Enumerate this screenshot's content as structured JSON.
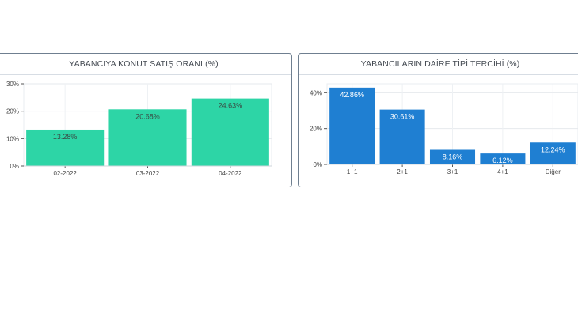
{
  "chart_data": [
    {
      "type": "bar",
      "title": "YABANCIYA KONUT SATIŞ ORANI (%)",
      "categories": [
        "02-2022",
        "03-2022",
        "04-2022"
      ],
      "values": [
        13.28,
        20.68,
        24.63
      ],
      "value_labels": [
        "13.28%",
        "20.68%",
        "24.63%"
      ],
      "ylim": [
        0,
        30
      ],
      "yticks": [
        0,
        10,
        20,
        30
      ],
      "ytick_labels": [
        "0%",
        "10%",
        "20%",
        "30%"
      ],
      "xlabel": "",
      "ylabel": "",
      "grid": true,
      "color": "#2dd5a6",
      "label_color": "#3a4a44"
    },
    {
      "type": "bar",
      "title": "YABANCILARIN DAİRE TİPİ TERCİHİ (%)",
      "categories": [
        "1+1",
        "2+1",
        "3+1",
        "4+1",
        "Diğer"
      ],
      "values": [
        42.86,
        30.61,
        8.16,
        6.12,
        12.24
      ],
      "value_labels": [
        "42.86%",
        "30.61%",
        "8.16%",
        "6.12%",
        "12.24%"
      ],
      "ylim": [
        0,
        45
      ],
      "yticks": [
        0,
        20,
        40
      ],
      "ytick_labels": [
        "0%",
        "20%",
        "40%"
      ],
      "xlabel": "",
      "ylabel": "",
      "grid": true,
      "color": "#1f7fd2",
      "label_color": "#ffffff"
    }
  ]
}
